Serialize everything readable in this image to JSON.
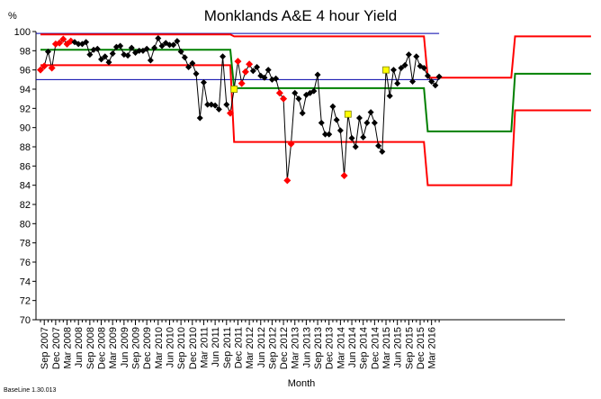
{
  "chart_data": {
    "type": "line",
    "title": "Monklands A&E 4 hour Yield",
    "ylabel": "%",
    "xlabel": "Month",
    "ylim": [
      70,
      100
    ],
    "yticks": [
      70,
      72,
      74,
      76,
      78,
      80,
      82,
      84,
      86,
      88,
      90,
      92,
      94,
      96,
      98,
      100
    ],
    "xticks": [
      "Sep 2007",
      "Dec 2007",
      "Mar 2008",
      "Jun 2008",
      "Sep 2008",
      "Dec 2008",
      "Mar 2009",
      "Jun 2009",
      "Sep 2009",
      "Dec 2009",
      "Mar 2010",
      "Jun 2010",
      "Sep 2010",
      "Dec 2010",
      "Mar 2011",
      "Jun 2011",
      "Sep 2011",
      "Dec 2011",
      "Mar 2012",
      "Jun 2012",
      "Sep 2012",
      "Dec 2012",
      "Mar 2013",
      "Jun 2013",
      "Sep 2013",
      "Dec 2013",
      "Mar 2014",
      "Jun 2014",
      "Sep 2014",
      "Dec 2014",
      "Mar 2015",
      "Jun 2015",
      "Sep 2015",
      "Dec 2015",
      "Mar 2016"
    ],
    "footer": "BaseLine 1.30.013",
    "target_lines": [
      95,
      99.8
    ],
    "periods": [
      {
        "start": 0,
        "end": 50,
        "center": 98.1,
        "upper": 99.7,
        "lower": 96.5
      },
      {
        "start": 51,
        "end": 101,
        "center": 94.1,
        "upper": 99.5,
        "lower": 88.5
      },
      {
        "start": 102,
        "end": 124,
        "center": 89.6,
        "upper": 95.2,
        "lower": 84.0
      },
      {
        "start": 125,
        "end": 145,
        "center": 95.6,
        "upper": 99.5,
        "lower": 91.8
      }
    ],
    "colors": {
      "axis": "#000000",
      "target": "#0000aa",
      "limits": "#ff0000",
      "center": "#008000",
      "normal": "#000000",
      "special": "#ff0000",
      "phase": "#ffff00"
    },
    "series": [
      {
        "values": [
          96.0,
          96.4,
          97.9,
          96.2,
          98.7,
          98.8,
          99.2,
          98.7,
          99.0,
          98.9,
          98.7,
          98.7,
          98.9,
          97.6,
          98.1,
          98.2,
          97.1,
          97.4,
          96.8,
          97.7,
          98.4,
          98.5,
          97.6,
          97.5,
          98.3,
          97.8,
          98.0,
          98.0,
          98.2,
          97.0,
          98.3,
          99.3,
          98.5,
          98.8,
          98.6,
          98.6,
          99.0,
          97.9,
          97.3,
          96.3,
          96.7,
          95.6,
          91.0,
          94.7,
          92.4,
          92.4,
          92.3,
          91.9,
          97.4,
          92.4,
          91.5,
          94.0,
          96.9,
          94.6,
          95.8,
          96.6,
          95.9,
          96.3,
          95.4,
          95.2,
          96.0,
          95.0,
          95.1,
          93.6,
          93.0,
          84.5,
          88.3,
          93.6,
          93.0,
          91.5,
          93.4,
          93.6,
          93.8,
          95.5,
          90.5,
          89.3,
          89.3,
          92.2,
          90.8,
          89.7,
          85.0,
          91.4,
          88.9,
          88.0,
          91.0,
          89.0,
          90.5,
          91.6,
          90.5,
          88.1,
          87.5,
          96.0,
          93.3,
          96.0,
          94.6,
          96.2,
          96.5,
          97.6,
          94.8,
          97.4,
          96.4,
          96.2,
          95.4,
          94.8,
          94.4,
          95.3
        ]
      }
    ],
    "special_points": [
      0,
      1,
      3,
      4,
      5,
      6,
      7,
      8,
      50,
      51,
      52,
      53,
      54,
      55,
      63,
      64,
      65,
      66,
      80,
      91
    ],
    "phase_points": [
      51,
      81,
      91
    ]
  }
}
